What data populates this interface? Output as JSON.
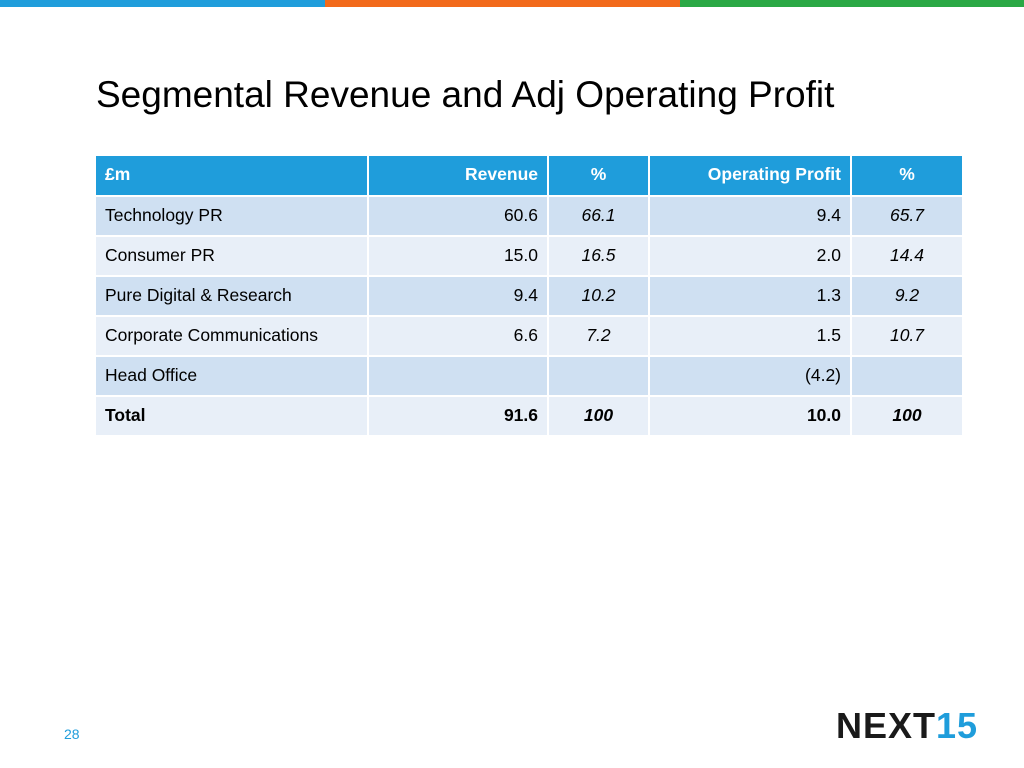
{
  "colors": {
    "bar_blue": "#1f9ddb",
    "bar_orange": "#f26a1b",
    "bar_green": "#2aa845",
    "header_blue": "#1f9ddb",
    "row_dark": "#cfe0f2",
    "row_light": "#e8eff8"
  },
  "slide": {
    "title": "Segmental Revenue and Adj Operating Profit",
    "page_number": "28"
  },
  "table": {
    "headers": [
      "£m",
      "Revenue",
      "%",
      "Operating Profit",
      "%"
    ],
    "rows": [
      {
        "segment": "Technology PR",
        "revenue": "60.6",
        "revenue_pct": "66.1",
        "op_profit": "9.4",
        "op_pct": "65.7"
      },
      {
        "segment": "Consumer PR",
        "revenue": "15.0",
        "revenue_pct": "16.5",
        "op_profit": "2.0",
        "op_pct": "14.4"
      },
      {
        "segment": "Pure Digital & Research",
        "revenue": "9.4",
        "revenue_pct": "10.2",
        "op_profit": "1.3",
        "op_pct": "9.2"
      },
      {
        "segment": "Corporate Communications",
        "revenue": "6.6",
        "revenue_pct": "7.2",
        "op_profit": "1.5",
        "op_pct": "10.7"
      },
      {
        "segment": "Head Office",
        "revenue": "",
        "revenue_pct": "",
        "op_profit": "(4.2)",
        "op_pct": ""
      }
    ],
    "total": {
      "segment": "Total",
      "revenue": "91.6",
      "revenue_pct": "100",
      "op_profit": "10.0",
      "op_pct": "100"
    }
  },
  "logo": {
    "word": "NEXT",
    "number": "15"
  }
}
